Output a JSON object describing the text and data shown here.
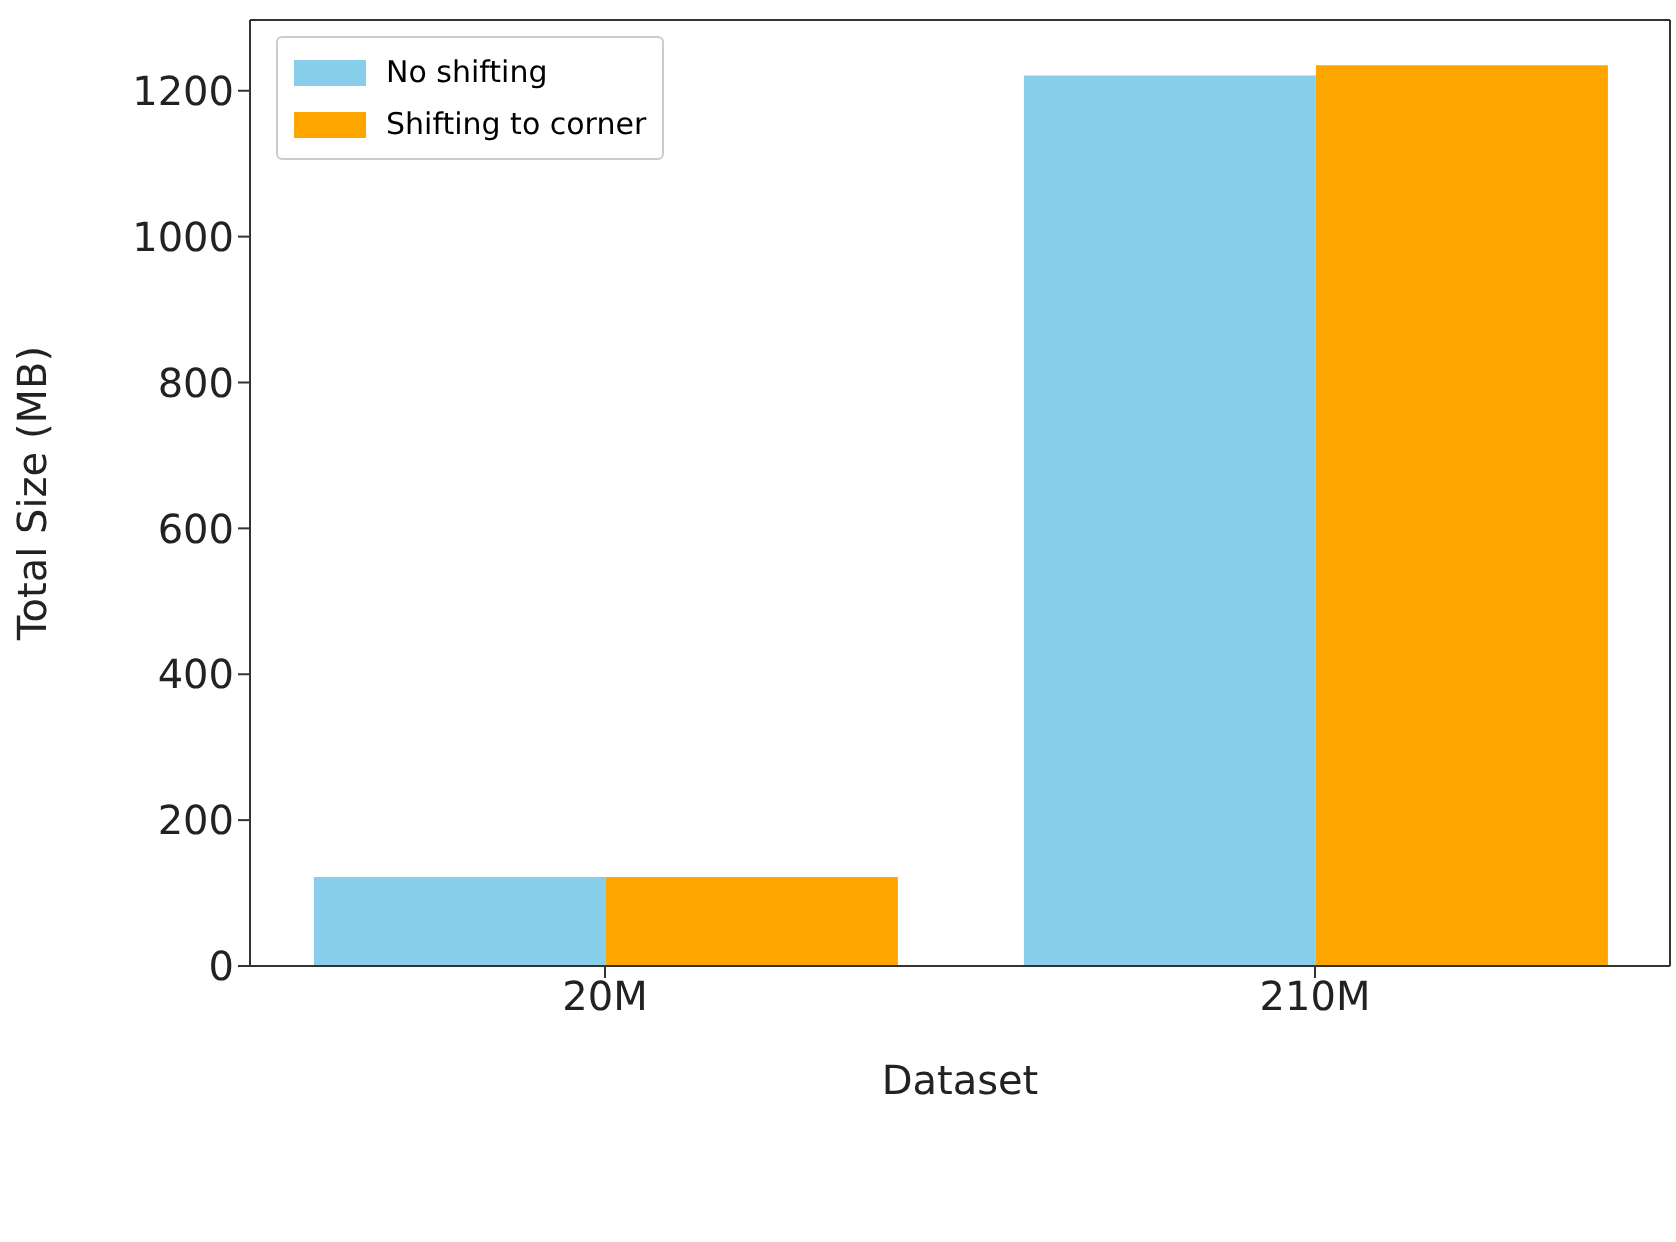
{
  "chart_data": {
    "type": "bar",
    "xlabel": "Dataset",
    "ylabel": "Total Size (MB)",
    "categories": [
      "20M",
      "210M"
    ],
    "series": [
      {
        "name": "No shifting",
        "color": "#87ceeb",
        "values": [
          122,
          1221
        ]
      },
      {
        "name": "Shifting to corner",
        "color": "#ffa500",
        "values": [
          122,
          1235
        ]
      }
    ],
    "ylim": [
      0,
      1297
    ],
    "yticks": [
      0,
      200,
      400,
      600,
      800,
      1000,
      1200
    ],
    "legend": "top left"
  }
}
